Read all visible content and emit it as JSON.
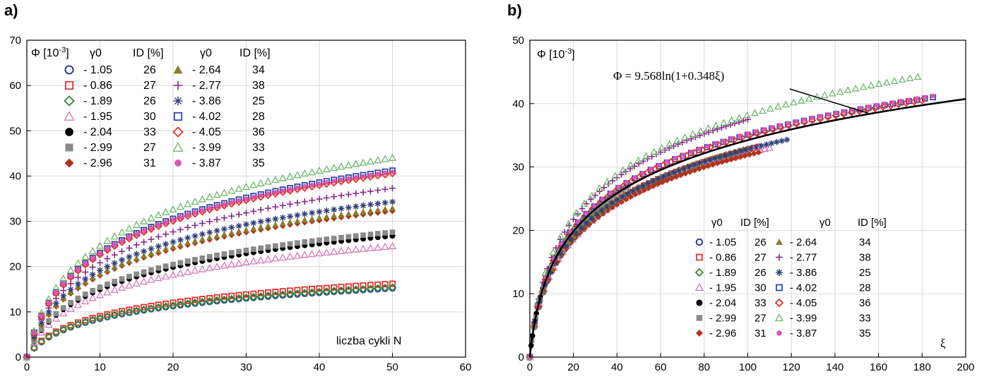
{
  "chart_data": [
    {
      "panel": "a)",
      "type": "scatter",
      "xlabel": "liczba cykli N",
      "ylabel": "Φ [10⁻³]",
      "xlim": [
        0,
        60
      ],
      "ylim": [
        0,
        70
      ],
      "xticks": [
        "0",
        "10",
        "20",
        "30",
        "40",
        "50",
        "60"
      ],
      "yticks": [
        "0",
        "10",
        "20",
        "30",
        "40",
        "50",
        "60",
        "70"
      ],
      "grid": true,
      "legend_position": "top-left",
      "legend_headers": {
        "gamma": "γ0",
        "id": "ID [%]"
      },
      "series": [
        {
          "name": "- 1.05",
          "id_pct": "26",
          "marker": "circle-open",
          "color": "#2e3d9a",
          "final": 15.2
        },
        {
          "name": "- 0.86",
          "id_pct": "27",
          "marker": "square-open",
          "color": "#e8302a",
          "final": 16.2
        },
        {
          "name": "- 1.89",
          "id_pct": "26",
          "marker": "diamond-open",
          "color": "#2f8a3a",
          "final": 15.4
        },
        {
          "name": "- 1.95",
          "id_pct": "30",
          "marker": "triangle-open",
          "color": "#d67ab8",
          "final": 24.5
        },
        {
          "name": "- 2.04",
          "id_pct": "33",
          "marker": "circle-filled",
          "color": "#000000",
          "final": 26.8
        },
        {
          "name": "- 2.99",
          "id_pct": "27",
          "marker": "square-filled",
          "color": "#8a8a8a",
          "final": 27.6
        },
        {
          "name": "- 2.96",
          "id_pct": "31",
          "marker": "diamond-filled",
          "color": "#b2341b",
          "final": 32.3
        },
        {
          "name": "- 2.64",
          "id_pct": "34",
          "marker": "triangle-filled",
          "color": "#8a7d2a",
          "final": 32.9
        },
        {
          "name": "- 2.77",
          "id_pct": "38",
          "marker": "plus",
          "color": "#8a2a8a",
          "final": 37.3
        },
        {
          "name": "- 3.86",
          "id_pct": "25",
          "marker": "asterisk",
          "color": "#2e3d7a",
          "final": 34.3
        },
        {
          "name": "- 4.02",
          "id_pct": "28",
          "marker": "square-open",
          "color": "#3349a8",
          "final": 41.2
        },
        {
          "name": "- 4.05",
          "id_pct": "36",
          "marker": "diamond-open",
          "color": "#e8302a",
          "final": 40.6
        },
        {
          "name": "- 3.99",
          "id_pct": "33",
          "marker": "triangle-open",
          "color": "#6fb86f",
          "final": 44.0
        },
        {
          "name": "- 3.87",
          "id_pct": "35",
          "marker": "circle-filled-small",
          "color": "#d957b4",
          "final": 40.9
        }
      ]
    },
    {
      "panel": "b)",
      "type": "scatter",
      "xlabel": "ξ",
      "ylabel": "Φ [10⁻³]",
      "xlim": [
        0,
        200
      ],
      "ylim": [
        0,
        50
      ],
      "xticks": [
        "0",
        "20",
        "40",
        "60",
        "80",
        "100",
        "120",
        "140",
        "160",
        "180",
        "200"
      ],
      "yticks": [
        "0",
        "10",
        "20",
        "30",
        "40",
        "50"
      ],
      "grid": true,
      "legend_position": "bottom-right",
      "legend_headers": {
        "gamma": "γ0",
        "id": "ID [%]"
      },
      "fit_equation": "Φ = 9.568ln(1+0.348ξ)",
      "fit": {
        "a": 9.568,
        "b": 0.348
      },
      "series": [
        {
          "name": "- 1.05",
          "id_pct": "26",
          "marker": "circle-open",
          "color": "#2e3d9a",
          "xmax": 100,
          "final": 32.4
        },
        {
          "name": "- 0.86",
          "id_pct": "27",
          "marker": "square-open",
          "color": "#e8302a",
          "xmax": 105,
          "final": 33.2
        },
        {
          "name": "- 1.89",
          "id_pct": "26",
          "marker": "diamond-open",
          "color": "#2f8a3a",
          "xmax": 100,
          "final": 32.6
        },
        {
          "name": "- 1.95",
          "id_pct": "30",
          "marker": "triangle-open",
          "color": "#d67ab8",
          "xmax": 110,
          "final": 33.0
        },
        {
          "name": "- 2.04",
          "id_pct": "33",
          "marker": "circle-filled",
          "color": "#000000",
          "xmax": 30,
          "final": 23.5
        },
        {
          "name": "- 2.99",
          "id_pct": "27",
          "marker": "square-filled",
          "color": "#8a8a8a",
          "xmax": 45,
          "final": 27.0
        },
        {
          "name": "- 2.96",
          "id_pct": "31",
          "marker": "diamond-filled",
          "color": "#b2341b",
          "xmax": 105,
          "final": 32.3
        },
        {
          "name": "- 2.64",
          "id_pct": "34",
          "marker": "triangle-filled",
          "color": "#8a7d2a",
          "xmax": 100,
          "final": 33.0
        },
        {
          "name": "- 2.77",
          "id_pct": "38",
          "marker": "plus",
          "color": "#8a2a8a",
          "xmax": 100,
          "final": 37.5
        },
        {
          "name": "- 3.86",
          "id_pct": "25",
          "marker": "asterisk",
          "color": "#2e3d7a",
          "xmax": 118,
          "final": 34.3
        },
        {
          "name": "- 4.02",
          "id_pct": "28",
          "marker": "square-open",
          "color": "#3349a8",
          "xmax": 185,
          "final": 41.0
        },
        {
          "name": "- 4.05",
          "id_pct": "36",
          "marker": "diamond-open",
          "color": "#e8302a",
          "xmax": 180,
          "final": 40.5
        },
        {
          "name": "- 3.99",
          "id_pct": "33",
          "marker": "triangle-open",
          "color": "#6fb86f",
          "xmax": 178,
          "final": 44.2
        },
        {
          "name": "- 3.87",
          "id_pct": "35",
          "marker": "circle-filled-small",
          "color": "#d957b4",
          "xmax": 185,
          "final": 41.2
        }
      ]
    }
  ]
}
